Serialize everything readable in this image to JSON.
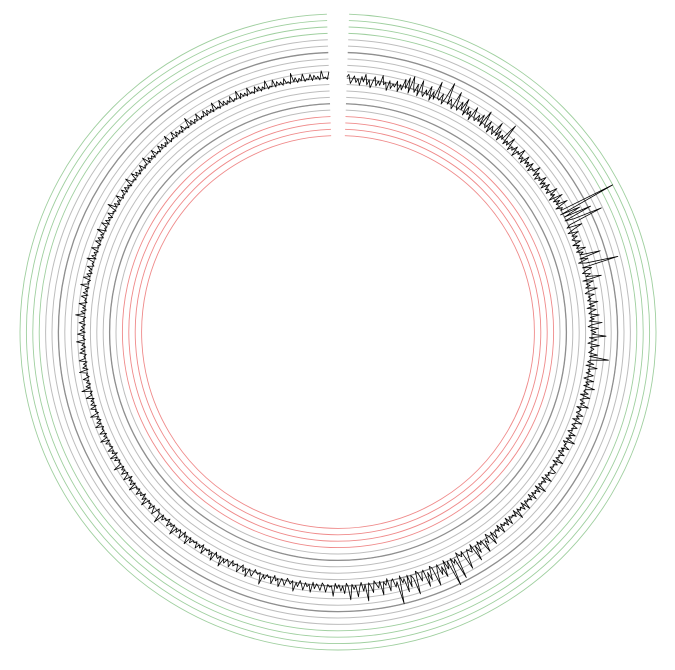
{
  "chart_data": {
    "type": "line",
    "layout": "radial",
    "title": "",
    "xlabel": "",
    "ylabel": "",
    "grid": true,
    "legend": "none",
    "theta_start_deg": 2,
    "theta_end_deg": 358,
    "ylim": [
      0,
      10
    ],
    "reference_rings": {
      "red": [
        0.5,
        1.0,
        1.5,
        2.0
      ],
      "gray": [
        2.5,
        3.0,
        3.5,
        4.0,
        4.5,
        5.0,
        5.5,
        6.0,
        6.5,
        7.0,
        7.5,
        8.0
      ],
      "dark_gray": [
        3.0,
        5.0,
        7.0
      ],
      "green": [
        8.5,
        9.0,
        9.5,
        10.0
      ]
    },
    "series": [
      {
        "values": [
          5.1,
          5.3,
          4.6,
          4.9,
          5.2,
          4.7,
          5.0,
          4.5,
          5.2,
          4.8,
          5.4,
          4.6,
          5.0,
          4.4,
          4.9,
          5.3,
          4.6,
          5.0,
          4.7,
          5.5,
          4.8,
          5.0,
          4.4,
          5.2,
          4.6,
          5.0,
          4.8,
          5.3,
          4.5,
          5.1,
          4.7,
          5.6,
          4.9,
          5.8,
          4.6,
          6.0,
          5.2,
          4.8,
          5.5,
          4.6,
          5.9,
          5.0,
          4.7,
          5.3,
          4.9,
          5.7,
          4.6,
          5.4,
          4.8,
          6.3,
          5.0,
          4.9,
          5.5,
          4.7,
          5.3,
          6.6,
          4.9,
          5.4,
          5.0,
          4.7,
          6.2,
          5.1,
          4.8,
          5.6,
          5.0,
          6.0,
          4.7,
          5.5,
          4.9,
          5.3,
          4.6,
          5.8,
          5.0,
          4.8,
          5.4,
          4.9,
          5.6,
          4.7,
          6.1,
          5.0,
          4.8,
          5.5,
          4.6,
          5.3,
          5.0,
          4.7,
          5.9,
          4.8,
          5.4,
          4.6,
          5.2,
          4.9,
          6.4,
          4.7,
          5.1,
          4.8,
          5.6,
          4.6,
          5.0,
          4.8,
          5.3,
          4.5,
          5.1,
          4.9,
          5.5,
          4.7,
          5.0,
          4.6,
          5.4,
          4.8,
          5.1,
          4.7,
          5.3,
          4.6,
          5.0,
          4.9,
          5.5,
          4.7,
          5.2,
          4.6,
          5.0,
          4.8,
          5.4,
          4.7,
          5.1,
          4.6,
          5.3,
          4.8,
          5.0,
          4.7,
          5.6,
          4.9,
          5.2,
          4.6,
          5.7,
          4.8,
          5.3,
          4.9,
          5.8,
          4.7,
          5.2,
          5.0,
          9.5,
          4.8,
          6.4,
          5.0,
          7.2,
          4.9,
          5.6,
          7.9,
          5.1,
          4.8,
          6.0,
          5.2,
          4.7,
          5.5,
          4.9,
          5.3,
          4.8,
          5.0,
          5.4,
          4.7,
          5.2,
          4.9,
          5.6,
          4.8,
          5.3,
          5.0,
          6.6,
          4.9,
          5.5,
          4.7,
          5.3,
          7.8,
          4.9,
          5.6,
          5.1,
          4.8,
          5.4,
          5.0,
          6.2,
          4.7,
          5.5,
          4.9,
          5.2,
          4.8,
          5.7,
          5.0,
          4.7,
          5.4,
          4.9,
          5.1,
          4.8,
          5.6,
          4.9,
          5.3,
          4.7,
          5.4,
          5.0,
          4.8,
          5.6,
          4.9,
          5.2,
          4.8,
          5.8,
          5.0,
          4.7,
          5.5,
          4.9,
          5.3,
          5.0,
          6.1,
          4.8,
          5.4,
          5.0,
          4.7,
          5.6,
          4.9,
          5.2,
          5.0,
          4.8,
          5.5,
          4.9,
          6.4,
          5.0,
          4.8,
          5.3,
          4.7,
          5.6,
          4.9,
          5.1,
          4.8,
          5.4,
          5.0,
          4.7,
          5.5,
          4.9,
          5.2,
          4.8,
          5.7,
          5.0,
          4.9,
          5.3,
          4.7,
          5.5,
          5.0,
          4.8,
          5.2,
          4.9,
          5.6,
          4.7,
          5.1,
          5.0,
          4.8,
          5.4,
          4.9,
          5.2,
          4.7,
          5.5,
          5.0,
          4.8,
          5.3,
          4.9,
          5.0,
          4.7,
          5.4,
          4.9,
          5.2,
          4.8,
          5.6,
          4.7,
          5.0,
          4.9,
          5.4,
          4.8,
          5.1,
          4.7,
          5.3,
          4.9,
          5.0,
          4.8,
          5.5,
          4.7,
          5.2,
          4.9,
          5.0,
          4.8,
          5.4,
          5.3,
          4.9,
          5.1,
          4.8,
          5.5,
          4.7,
          5.2,
          4.9,
          5.0,
          4.8,
          5.6,
          4.7,
          5.3,
          4.9,
          5.1,
          4.8,
          5.4,
          4.7,
          5.2,
          4.9,
          5.0,
          4.8,
          5.5,
          4.7,
          5.3,
          4.9,
          5.1,
          4.8,
          5.6,
          4.7,
          5.2,
          4.9,
          5.0,
          4.8,
          5.4,
          4.7,
          5.3,
          4.9,
          5.1,
          4.8,
          5.5,
          4.7,
          5.2,
          4.9,
          5.0,
          5.5,
          4.8,
          5.8,
          5.0,
          4.7,
          5.4,
          5.1,
          6.0,
          4.9,
          5.2,
          4.8,
          5.7,
          5.0,
          6.2,
          4.7,
          5.3,
          5.1,
          4.9,
          5.5,
          6.4,
          4.8,
          5.2,
          5.0,
          4.7,
          6.8,
          5.1,
          5.4,
          4.9,
          7.1,
          5.0,
          5.6,
          4.8,
          6.1,
          5.2,
          5.8,
          4.9,
          5.4,
          6.5,
          5.0,
          4.8,
          5.9,
          5.2,
          6.3,
          4.9,
          5.1,
          5.7,
          5.0,
          4.8,
          6.6,
          5.3,
          5.0,
          5.9,
          4.9,
          6.2,
          5.1,
          5.4,
          4.8,
          7.0,
          5.2,
          5.6,
          4.9,
          5.1,
          5.8,
          4.8,
          5.3,
          5.0,
          6.0,
          4.9,
          5.4,
          5.1,
          4.8,
          5.7,
          5.2,
          4.9,
          6.3,
          5.0,
          5.5,
          4.8,
          5.2,
          5.9,
          5.0,
          5.3,
          4.9,
          6.1,
          5.1,
          4.8,
          5.6,
          5.0,
          5.4,
          4.9,
          5.2,
          4.8,
          5.8,
          5.0,
          5.1,
          4.9,
          5.5,
          5.0,
          4.8,
          5.4,
          5.1,
          4.9,
          5.3,
          4.8,
          5.6,
          5.0,
          5.2,
          4.9,
          5.5,
          5.1,
          4.8,
          5.3,
          5.0,
          5.7,
          4.9,
          5.2,
          5.0,
          4.8,
          5.4,
          5.1,
          4.9,
          5.6,
          5.0,
          5.2,
          4.8,
          5.5,
          5.0,
          5.1,
          4.9,
          5.3,
          5.0,
          5.8,
          4.9,
          5.1,
          5.0,
          4.8,
          5.4,
          5.2,
          4.9,
          5.6,
          5.0,
          5.3,
          4.8,
          5.1,
          5.5,
          4.9,
          5.0,
          5.2,
          4.8,
          5.4,
          5.1,
          4.9,
          5.3,
          5.0,
          5.7,
          4.9,
          5.2,
          5.1,
          4.8,
          5.6,
          5.0,
          5.3,
          4.9,
          5.1,
          5.0,
          5.5,
          4.8,
          5.2,
          5.0,
          5.4,
          4.9,
          5.1,
          5.0,
          5.3,
          4.9,
          5.6,
          5.0,
          5.2,
          4.8,
          5.5,
          5.1,
          4.9,
          5.3,
          5.0,
          5.7,
          4.9,
          5.2,
          5.0,
          5.4,
          4.8,
          5.1,
          5.0,
          5.3,
          4.9,
          5.8,
          5.1,
          5.0,
          4.8,
          5.5,
          5.2,
          4.9,
          5.4,
          5.0,
          5.1,
          4.9,
          5.6,
          5.0,
          5.3,
          4.8,
          5.2,
          5.0,
          5.4,
          4.9,
          5.1,
          5.0,
          5.6,
          4.9,
          5.3,
          5.0,
          5.2,
          4.8,
          5.5,
          5.1,
          4.9,
          5.4,
          5.0,
          5.2,
          4.9,
          5.7,
          5.0,
          5.1,
          4.9,
          5.3,
          5.0,
          5.5,
          4.8,
          5.2,
          5.0,
          5.4,
          4.9,
          5.1,
          5.0,
          5.3,
          4.9,
          5.6,
          5.0,
          5.2,
          4.9,
          5.4,
          5.0,
          5.1,
          4.9,
          5.5,
          5.0,
          5.3,
          4.9,
          5.2,
          5.0,
          5.6,
          4.9,
          5.1,
          5.0,
          5.4,
          4.9,
          5.3,
          5.0,
          5.2,
          4.9,
          5.5,
          5.0,
          5.1,
          4.9,
          5.7,
          5.0,
          5.3,
          4.9,
          5.2,
          5.0,
          5.4,
          4.9,
          5.1,
          5.0,
          5.6,
          4.9,
          5.3,
          5.0,
          5.2,
          4.9,
          5.5,
          5.0,
          5.1,
          4.9,
          5.4,
          5.0,
          5.3,
          4.9,
          5.2,
          5.0,
          5.6,
          4.9,
          5.1,
          5.0,
          5.5,
          4.9,
          5.3,
          5.0,
          5.2,
          4.9,
          5.4,
          5.0,
          5.1,
          4.9,
          5.7,
          5.0,
          5.3,
          4.9,
          5.2,
          5.0,
          5.5,
          4.9,
          5.1,
          5.0,
          5.4,
          4.9,
          5.3,
          5.0,
          5.2,
          4.9,
          5.6,
          5.0,
          5.1,
          4.9,
          5.5,
          5.0,
          5.3,
          4.9,
          5.2,
          5.0,
          5.4,
          4.9,
          5.1,
          5.0,
          5.6,
          4.9,
          5.3,
          5.0,
          5.2,
          4.9,
          5.5,
          5.0,
          5.1,
          4.9,
          5.4,
          5.0,
          5.3,
          4.9,
          5.2,
          5.0,
          5.6,
          4.9,
          5.1,
          5.0,
          5.5,
          4.9,
          5.3,
          5.0,
          5.2,
          4.9,
          5.4,
          5.0,
          5.1,
          4.9,
          5.7,
          5.0,
          5.3,
          4.9,
          5.2,
          5.0,
          5.5,
          4.9,
          5.1,
          5.0,
          5.4,
          4.9,
          5.3,
          5.0,
          5.2,
          4.9,
          5.6,
          5.0,
          5.1,
          4.9,
          5.5,
          5.0,
          5.3,
          4.9,
          5.2,
          5.0,
          5.4,
          4.9,
          5.1,
          5.0,
          5.6,
          4.9,
          5.3,
          5.0,
          5.2,
          4.9,
          5.5,
          5.0,
          5.1,
          4.9,
          5.4,
          5.0,
          5.3,
          4.9,
          5.2,
          5.0,
          5.6,
          4.9,
          5.1,
          5.0,
          5.5,
          4.9,
          5.3,
          5.0,
          5.2,
          4.9,
          5.4,
          5.0,
          5.1,
          4.9,
          5.7,
          5.0,
          5.3,
          4.9,
          5.2,
          5.0,
          5.5,
          4.9,
          5.1,
          5.0,
          5.4,
          4.9,
          5.3,
          5.0,
          5.2,
          4.9,
          5.6,
          5.0,
          5.1,
          4.9,
          5.5,
          5.0,
          5.3,
          4.9,
          5.2,
          5.0,
          5.4,
          4.9,
          5.1,
          5.0,
          5.6,
          4.9,
          5.3,
          5.0,
          5.2,
          4.9,
          5.5,
          5.0,
          5.1,
          4.9,
          5.4,
          5.0,
          5.3,
          4.9,
          5.2,
          5.0,
          5.6,
          4.9,
          5.1,
          5.0,
          5.5,
          4.9,
          5.3,
          5.0,
          5.2,
          4.9,
          5.4,
          5.0,
          5.1,
          4.9,
          5.7,
          5.0,
          5.3,
          4.9,
          5.2,
          5.0,
          5.5,
          4.9,
          5.1,
          5.0,
          5.4,
          4.9,
          5.3,
          5.0,
          5.2,
          4.9,
          5.6,
          5.0,
          5.1,
          4.9,
          5.5
        ]
      }
    ],
    "colors": {
      "series": "#000000",
      "red_ring": "#ef8a8a",
      "gray_ring": "#bdbdbd",
      "dark_gray_ring": "#8f8f8f",
      "green_ring": "#9fcf9f"
    }
  }
}
